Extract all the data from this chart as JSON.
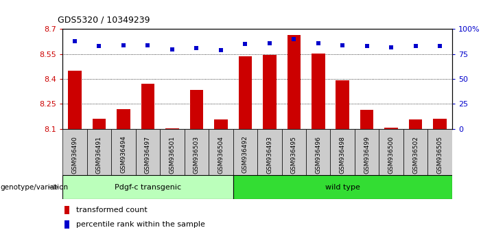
{
  "title": "GDS5320 / 10349239",
  "samples": [
    "GSM936490",
    "GSM936491",
    "GSM936494",
    "GSM936497",
    "GSM936501",
    "GSM936503",
    "GSM936504",
    "GSM936492",
    "GSM936493",
    "GSM936495",
    "GSM936496",
    "GSM936498",
    "GSM936499",
    "GSM936500",
    "GSM936502",
    "GSM936505"
  ],
  "bar_values": [
    8.45,
    8.16,
    8.22,
    8.37,
    8.101,
    8.335,
    8.155,
    8.535,
    8.545,
    8.665,
    8.555,
    8.39,
    8.215,
    8.105,
    8.155,
    8.16
  ],
  "percentile_values": [
    88,
    83,
    84,
    84,
    80,
    81,
    79,
    85,
    86,
    90,
    86,
    84,
    83,
    82,
    83,
    83
  ],
  "group1_label": "Pdgf-c transgenic",
  "group2_label": "wild type",
  "group1_count": 7,
  "group2_count": 9,
  "ylim_left": [
    8.1,
    8.7
  ],
  "ylim_right": [
    0,
    100
  ],
  "yticks_left": [
    8.1,
    8.25,
    8.4,
    8.55,
    8.7
  ],
  "yticks_right": [
    0,
    25,
    50,
    75,
    100
  ],
  "ytick_labels_left": [
    "8.1",
    "8.25",
    "8.4",
    "8.55",
    "8.7"
  ],
  "ytick_labels_right": [
    "0",
    "25",
    "50",
    "75",
    "100%"
  ],
  "bar_color": "#cc0000",
  "dot_color": "#0000cc",
  "group1_color": "#bbffbb",
  "group2_color": "#33dd33",
  "tick_bg_color": "#cccccc",
  "xlabel_color": "#cc0000",
  "ylabel_right_color": "#0000cc",
  "gridline_color": "#000000",
  "bg_color": "#ffffff",
  "bar_width": 0.55,
  "legend_labels": [
    "transformed count",
    "percentile rank within the sample"
  ],
  "genotype_label": "genotype/variation"
}
